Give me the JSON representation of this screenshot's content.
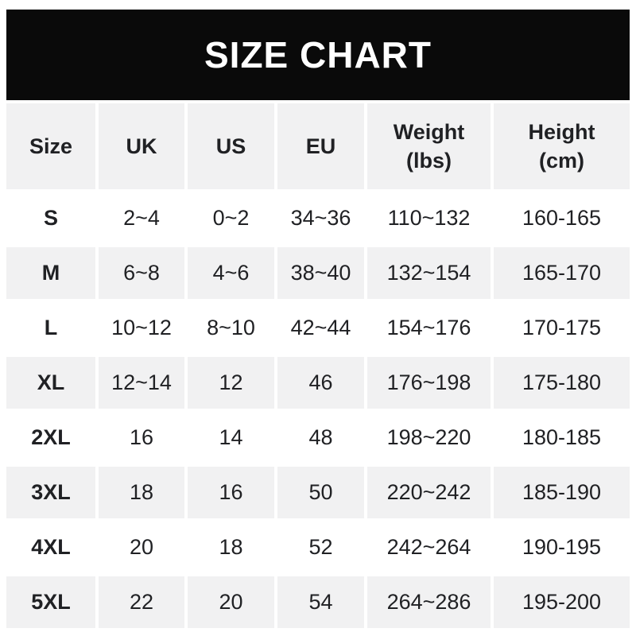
{
  "banner": {
    "title": "SIZE CHART"
  },
  "colors": {
    "banner_bg": "#0a0a0a",
    "banner_text": "#ffffff",
    "page_bg": "#ffffff",
    "row_bg": "#ffffff",
    "row_alt_bg": "#f1f1f2",
    "text": "#202124"
  },
  "chart_data": {
    "type": "table",
    "title": "SIZE CHART",
    "columns": [
      {
        "label": "Size",
        "sub": ""
      },
      {
        "label": "UK",
        "sub": ""
      },
      {
        "label": "US",
        "sub": ""
      },
      {
        "label": "EU",
        "sub": ""
      },
      {
        "label": "Weight",
        "sub": "(lbs)"
      },
      {
        "label": "Height",
        "sub": "(cm)"
      }
    ],
    "rows": [
      {
        "size": "S",
        "cells": [
          "2~4",
          "0~2",
          "34~36",
          "110~132",
          "160-165"
        ]
      },
      {
        "size": "M",
        "cells": [
          "6~8",
          "4~6",
          "38~40",
          "132~154",
          "165-170"
        ]
      },
      {
        "size": "L",
        "cells": [
          "10~12",
          "8~10",
          "42~44",
          "154~176",
          "170-175"
        ]
      },
      {
        "size": "XL",
        "cells": [
          "12~14",
          "12",
          "46",
          "176~198",
          "175-180"
        ]
      },
      {
        "size": "2XL",
        "cells": [
          "16",
          "14",
          "48",
          "198~220",
          "180-185"
        ]
      },
      {
        "size": "3XL",
        "cells": [
          "18",
          "16",
          "50",
          "220~242",
          "185-190"
        ]
      },
      {
        "size": "4XL",
        "cells": [
          "20",
          "18",
          "52",
          "242~264",
          "190-195"
        ]
      },
      {
        "size": "5XL",
        "cells": [
          "22",
          "20",
          "54",
          "264~286",
          "195-200"
        ]
      }
    ]
  }
}
